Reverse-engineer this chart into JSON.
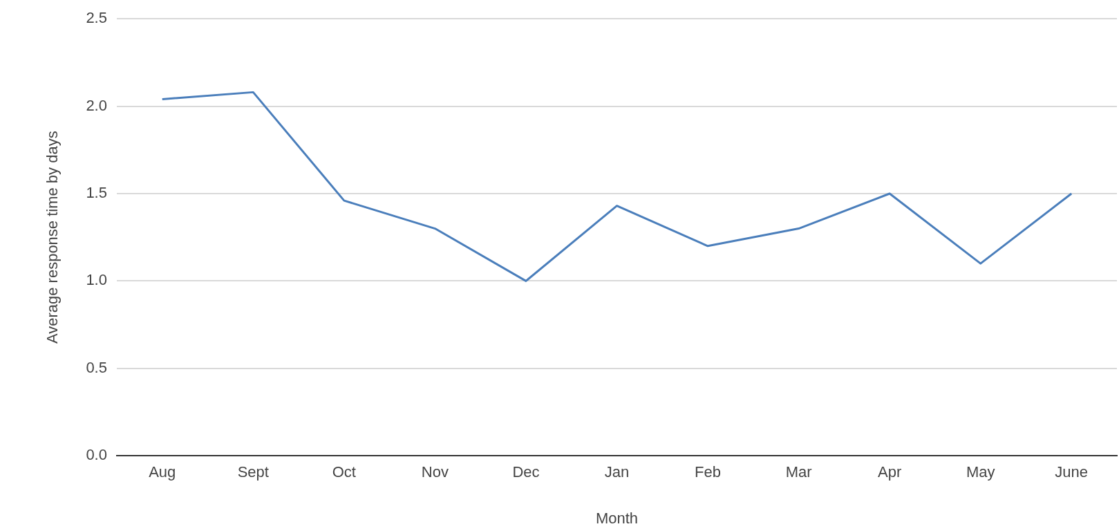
{
  "chart_data": {
    "type": "line",
    "xlabel": "Month",
    "ylabel": "Average response time by days",
    "categories": [
      "Aug",
      "Sept",
      "Oct",
      "Nov",
      "Dec",
      "Jan",
      "Feb",
      "Mar",
      "Apr",
      "May",
      "June"
    ],
    "series": [
      {
        "color": "#4a7ebb",
        "values": [
          2.04,
          2.08,
          1.46,
          1.3,
          1.0,
          1.43,
          1.2,
          1.3,
          1.5,
          1.1,
          1.5
        ]
      }
    ],
    "ylim": [
      0,
      2.5
    ],
    "yticks": [
      {
        "value": 0,
        "label": "0.0"
      },
      0.5,
      {
        "value": 1,
        "label": "1.0"
      },
      1.5,
      {
        "value": 2,
        "label": "2.0"
      },
      2.5
    ],
    "grid": "y",
    "legend": false,
    "marker": "none",
    "line_style": "solid"
  }
}
